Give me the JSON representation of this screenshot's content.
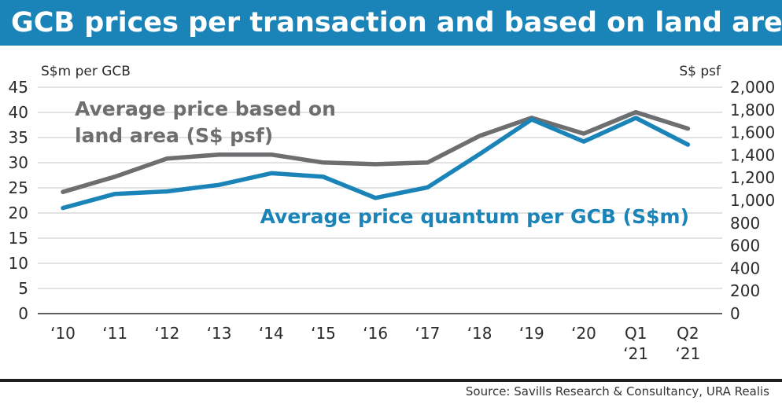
{
  "title": "GCB prices per transaction and based on land area",
  "source": "Source: Savills Research & Consultancy, URA Realis",
  "chart_data": {
    "type": "line",
    "categories": [
      [
        "‘10"
      ],
      [
        "‘11"
      ],
      [
        "‘12"
      ],
      [
        "‘13"
      ],
      [
        "‘14"
      ],
      [
        "‘15"
      ],
      [
        "‘16"
      ],
      [
        "‘17"
      ],
      [
        "‘18"
      ],
      [
        "‘19"
      ],
      [
        "‘20"
      ],
      [
        "Q1",
        "‘21"
      ],
      [
        "Q2",
        "‘21"
      ]
    ],
    "left_axis": {
      "label": "S$m per GCB",
      "range": [
        0,
        45
      ],
      "ticks": [
        "0",
        "5",
        "10",
        "15",
        "20",
        "25",
        "30",
        "35",
        "40",
        "45"
      ]
    },
    "right_axis": {
      "label": "S$ psf",
      "range": [
        0,
        2000
      ],
      "ticks": [
        "0",
        "200",
        "400",
        "600",
        "800",
        "1,000",
        "1,200",
        "1,400",
        "1,600",
        "1,800",
        "2,000"
      ]
    },
    "grid": "horizontal",
    "series": [
      {
        "name": "Average price based on land area (S$ psf)",
        "label_lines": [
          "Average price based on",
          "land area (S$ psf)"
        ],
        "axis": "right",
        "color": "#6d6e70",
        "values": [
          1075,
          1210,
          1370,
          1405,
          1405,
          1335,
          1320,
          1335,
          1570,
          1730,
          1590,
          1780,
          1635
        ]
      },
      {
        "name": "Average price quantum per GCB (S$m)",
        "label_lines": [
          "Average price quantum per GCB (S$m)"
        ],
        "axis": "left",
        "color": "#1a84b8",
        "values": [
          21,
          23.8,
          24.3,
          25.6,
          27.9,
          27.2,
          23,
          25.1,
          31.7,
          38.6,
          34.2,
          38.9,
          33.6
        ]
      }
    ]
  }
}
